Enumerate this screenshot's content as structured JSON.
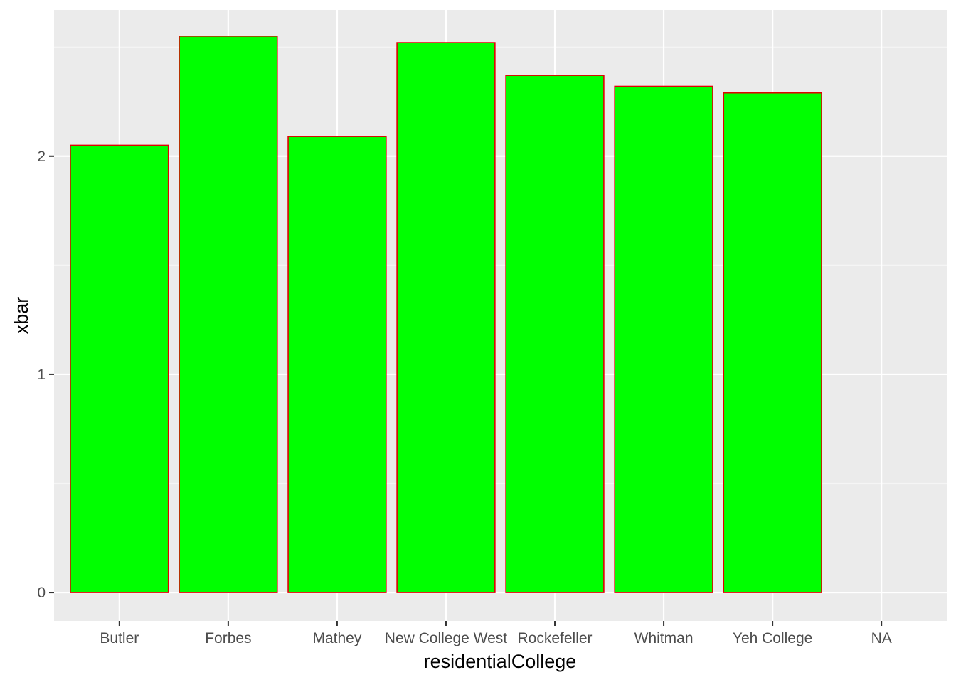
{
  "chart_data": {
    "type": "bar",
    "title": "",
    "xlabel": "residentialCollege",
    "ylabel": "xbar",
    "categories": [
      "Butler",
      "Forbes",
      "Mathey",
      "New College West",
      "Rockefeller",
      "Whitman",
      "Yeh College",
      "NA"
    ],
    "values": [
      2.05,
      2.55,
      2.09,
      2.52,
      2.37,
      2.32,
      2.29,
      null
    ],
    "ylim": [
      -0.13,
      2.67
    ],
    "yticks": [
      0,
      1,
      2
    ],
    "ytick_labels": [
      "0",
      "1",
      "2"
    ],
    "grid": true,
    "legend": "none",
    "colors": {
      "bar_fill": "#00ff00",
      "bar_outline": "#e00000",
      "panel_background": "#ebebeb",
      "grid_major": "#ffffff",
      "grid_minor": "#f5f5f5",
      "tick_color": "#333333"
    }
  }
}
